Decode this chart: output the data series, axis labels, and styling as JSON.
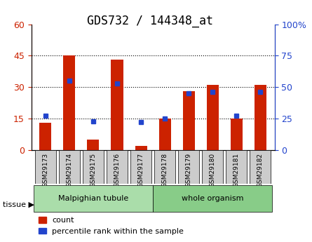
{
  "title": "GDS732 / 144348_at",
  "samples": [
    "GSM29173",
    "GSM29174",
    "GSM29175",
    "GSM29176",
    "GSM29177",
    "GSM29178",
    "GSM29179",
    "GSM29180",
    "GSM29181",
    "GSM29182"
  ],
  "counts": [
    13,
    45,
    5,
    43,
    2,
    15,
    28,
    31,
    15,
    31
  ],
  "percentile_ranks": [
    27,
    55,
    23,
    53,
    22,
    25,
    45,
    46,
    27,
    46
  ],
  "tissue_groups": [
    {
      "label": "Malpighian tubule",
      "start": 0,
      "end": 5,
      "color": "#aaddaa"
    },
    {
      "label": "whole organism",
      "start": 5,
      "end": 10,
      "color": "#88cc88"
    }
  ],
  "ylim_left": [
    0,
    60
  ],
  "ylim_right": [
    0,
    100
  ],
  "yticks_left": [
    0,
    15,
    30,
    45,
    60
  ],
  "ytick_labels_left": [
    "0",
    "15",
    "30",
    "45",
    "60"
  ],
  "yticks_right": [
    0,
    25,
    50,
    75,
    100
  ],
  "ytick_labels_right": [
    "0",
    "25",
    "50",
    "75",
    "100%"
  ],
  "bar_color": "#cc2200",
  "dot_color": "#2244cc",
  "bar_width": 0.5,
  "grid_color": "#000000",
  "bg_color": "#ffffff",
  "plot_bg": "#ffffff",
  "tick_label_bg": "#cccccc",
  "tissue_label": "tissue",
  "legend_count": "count",
  "legend_pct": "percentile rank within the sample",
  "title_fontsize": 12,
  "axis_fontsize": 9,
  "legend_fontsize": 8
}
